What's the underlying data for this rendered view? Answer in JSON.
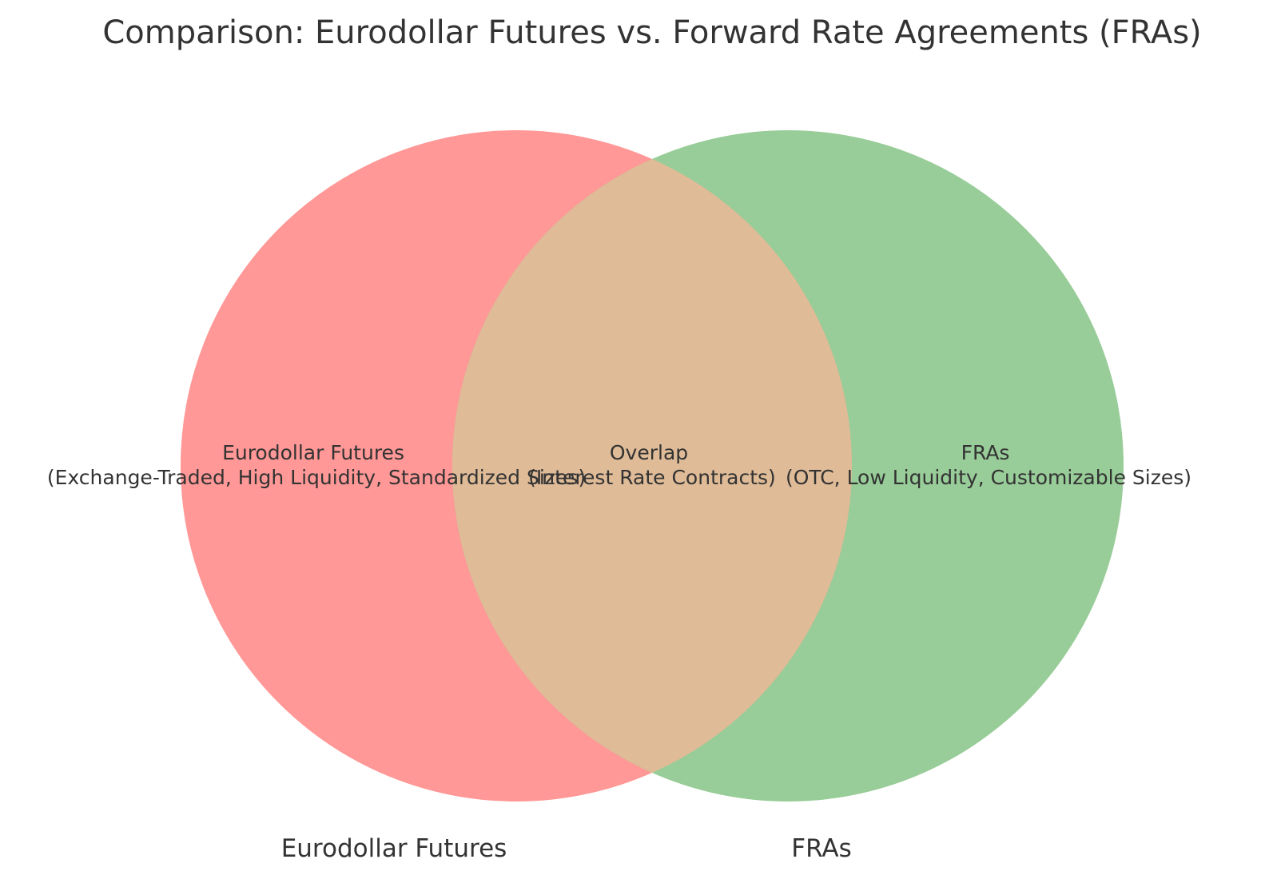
{
  "title": "Comparison: Eurodollar Futures vs. Forward Rate Agreements (FRAs)",
  "colors": {
    "set_a": "#ff9896",
    "set_b": "#98cc98",
    "overlap": "#dfbb97",
    "text": "#333333"
  },
  "sets": {
    "left": {
      "name": "Eurodollar Futures",
      "region_title": "Eurodollar Futures",
      "region_detail": "(Exchange-Traded, High Liquidity, Standardized Sizes)"
    },
    "right": {
      "name": "FRAs",
      "region_title": "FRAs",
      "region_detail": "(OTC, Low Liquidity, Customizable Sizes)"
    },
    "overlap": {
      "region_title": "Overlap",
      "region_detail": "(Interest Rate Contracts)"
    }
  }
}
